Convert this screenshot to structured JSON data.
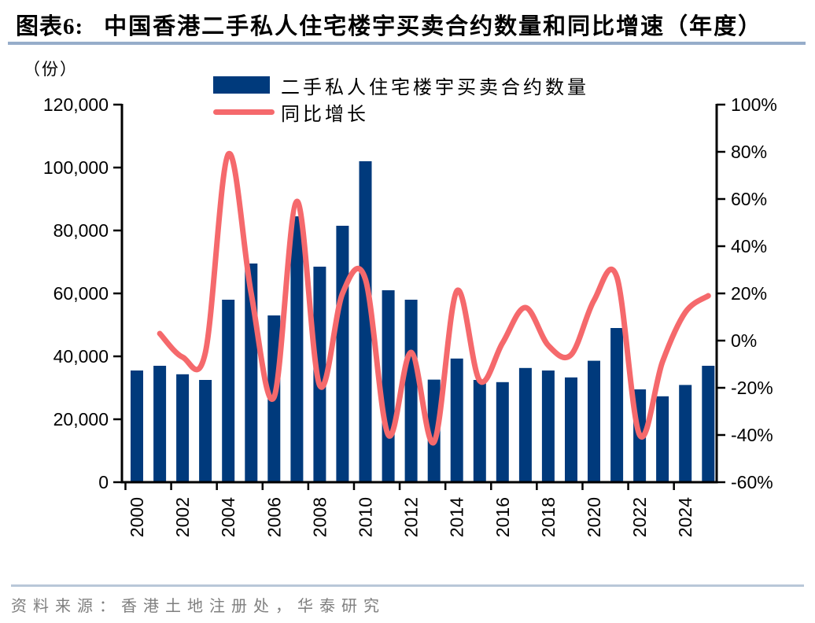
{
  "header": {
    "figure_label": "图表6:",
    "title": "中国香港二手私人住宅楼宇买卖合约数量和同比增速（年度）"
  },
  "footer": {
    "source": "资料来源：香港土地注册处，华泰研究"
  },
  "colors": {
    "bar": "#003A7C",
    "line": "#F5696C",
    "axis": "#000000",
    "title_rule": "#96ADCA",
    "source_rule": "#B9C7D8",
    "source_text": "#7F7F7F"
  },
  "chart_data": {
    "type": "combo",
    "title": "中国香港二手私人住宅楼宇买卖合约数量和同比增速（年度）",
    "grid": false,
    "legend_position": "top",
    "categories": [
      2000,
      2001,
      2002,
      2003,
      2004,
      2005,
      2006,
      2007,
      2008,
      2009,
      2010,
      2011,
      2012,
      2013,
      2014,
      2015,
      2016,
      2017,
      2018,
      2019,
      2020,
      2021,
      2022,
      2023,
      2024,
      2025
    ],
    "series": [
      {
        "name": "二手私人住宅楼宇买卖合约数量",
        "type": "bar",
        "axis": "left",
        "values": [
          35500,
          37000,
          34300,
          32500,
          58000,
          69500,
          53000,
          84500,
          68500,
          81500,
          102000,
          61000,
          58000,
          32600,
          39300,
          32500,
          31800,
          36300,
          35500,
          33300,
          38600,
          49000,
          29500,
          27300,
          30900,
          37000
        ]
      },
      {
        "name": "同比增长",
        "type": "line",
        "axis": "right",
        "values": [
          null,
          3,
          -7,
          -5,
          79,
          20,
          -24,
          59,
          -19,
          20,
          26,
          -40,
          -5,
          -43,
          21,
          -17,
          -1,
          14,
          -2,
          -6,
          17,
          27,
          -40,
          -9,
          12,
          19
        ]
      }
    ],
    "left_axis": {
      "unit": "（份）",
      "min": 0,
      "max": 120000,
      "tick_step": 20000,
      "tick_labels": [
        "120,000",
        "100,000",
        "80,000",
        "60,000",
        "40,000",
        "20,000",
        "0"
      ]
    },
    "right_axis": {
      "min": -60,
      "max": 100,
      "tick_step": 20,
      "tick_labels": [
        "100%",
        "80%",
        "60%",
        "40%",
        "20%",
        "0%",
        "-20%",
        "-40%",
        "-60%"
      ]
    },
    "x_tick_labels": [
      "2000",
      "2002",
      "2004",
      "2006",
      "2008",
      "2010",
      "2012",
      "2014",
      "2016",
      "2018",
      "2020",
      "2022",
      "2024"
    ]
  }
}
